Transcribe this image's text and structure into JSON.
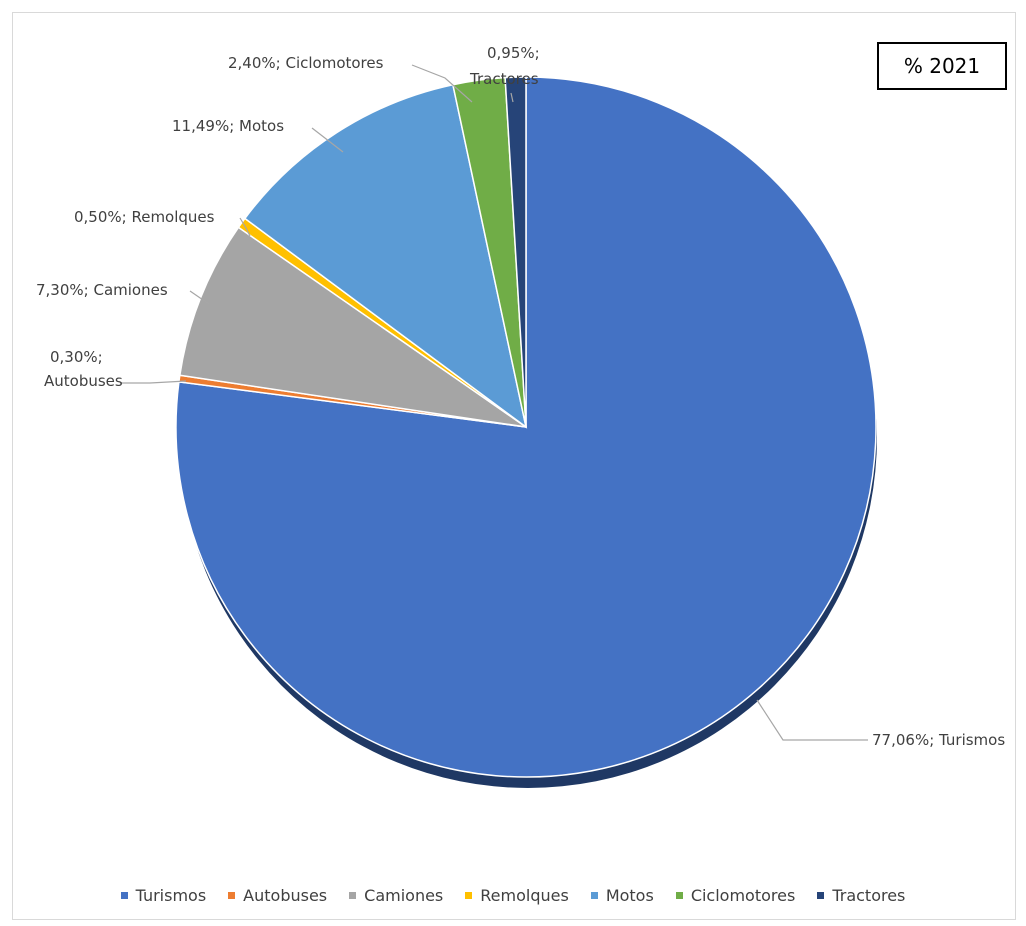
{
  "chart_data": {
    "type": "pie",
    "title": "% 2021",
    "slices": [
      {
        "name": "Turismos",
        "value": 77.06,
        "label": "77,06%; Turismos",
        "color": "#4472c4"
      },
      {
        "name": "Autobuses",
        "value": 0.3,
        "label": "0,30%; Autobuses",
        "color": "#ed7d31"
      },
      {
        "name": "Camiones",
        "value": 7.3,
        "label": "7,30%; Camiones",
        "color": "#a5a5a5"
      },
      {
        "name": "Remolques",
        "value": 0.5,
        "label": "0,50%; Remolques",
        "color": "#ffc000"
      },
      {
        "name": "Motos",
        "value": 11.49,
        "label": "11,49%; Motos",
        "color": "#5b9bd5"
      },
      {
        "name": "Ciclomotores",
        "value": 2.4,
        "label": "2,40%; Ciclomotores",
        "color": "#70ad47"
      },
      {
        "name": "Tractores",
        "value": 0.95,
        "label": "0,95%; Tractores",
        "color": "#264478"
      }
    ],
    "legend_position": "bottom"
  }
}
